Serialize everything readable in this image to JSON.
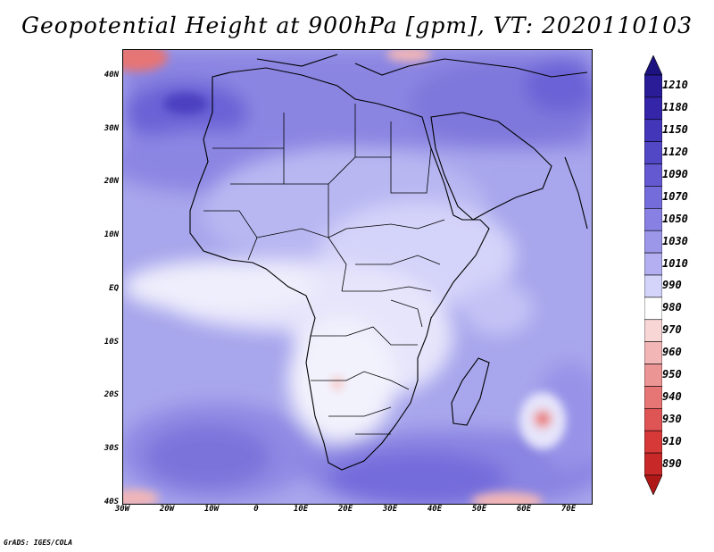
{
  "title": "Geopotential Height at 900hPa [gpm], VT: 2020110103",
  "credit": "GrADS: IGES/COLA",
  "map": {
    "variable": "Geopotential Height",
    "level": "900hPa",
    "units": "gpm",
    "valid_time": "2020110103",
    "lon_range": [
      -30,
      75
    ],
    "lat_range": [
      -40,
      45
    ]
  },
  "axes": {
    "y_labels": [
      {
        "lat": 40,
        "label": "40N"
      },
      {
        "lat": 30,
        "label": "30N"
      },
      {
        "lat": 20,
        "label": "20N"
      },
      {
        "lat": 10,
        "label": "10N"
      },
      {
        "lat": 0,
        "label": "EQ"
      },
      {
        "lat": -10,
        "label": "10S"
      },
      {
        "lat": -20,
        "label": "20S"
      },
      {
        "lat": -30,
        "label": "30S"
      },
      {
        "lat": -40,
        "label": "40S"
      }
    ],
    "x_labels": [
      {
        "lon": -30,
        "label": "30W"
      },
      {
        "lon": -20,
        "label": "20W"
      },
      {
        "lon": -10,
        "label": "10W"
      },
      {
        "lon": 0,
        "label": "0"
      },
      {
        "lon": 10,
        "label": "10E"
      },
      {
        "lon": 20,
        "label": "20E"
      },
      {
        "lon": 30,
        "label": "30E"
      },
      {
        "lon": 40,
        "label": "40E"
      },
      {
        "lon": 50,
        "label": "50E"
      },
      {
        "lon": 60,
        "label": "60E"
      },
      {
        "lon": 70,
        "label": "70E"
      }
    ]
  },
  "colorbar": {
    "levels": [
      {
        "label": "1210",
        "color": "#2a1b96"
      },
      {
        "label": "1180",
        "color": "#3525a8"
      },
      {
        "label": "1150",
        "color": "#4336b8"
      },
      {
        "label": "1120",
        "color": "#5247c5"
      },
      {
        "label": "1090",
        "color": "#6459d1"
      },
      {
        "label": "1070",
        "color": "#756cdb"
      },
      {
        "label": "1050",
        "color": "#8880e3"
      },
      {
        "label": "1030",
        "color": "#9d97ea"
      },
      {
        "label": "1010",
        "color": "#b3aff0"
      },
      {
        "label": "990",
        "color": "#d4d3f9"
      },
      {
        "label": "980",
        "color": "#ffffff"
      },
      {
        "label": "970",
        "color": "#f8d6d6"
      },
      {
        "label": "960",
        "color": "#f2b6b6"
      },
      {
        "label": "950",
        "color": "#ec9595"
      },
      {
        "label": "940",
        "color": "#e67575"
      },
      {
        "label": "930",
        "color": "#df5555"
      },
      {
        "label": "910",
        "color": "#d73838"
      },
      {
        "label": "890",
        "color": "#c92828"
      }
    ],
    "top_arrow_color": "#1c1280",
    "bottom_arrow_color": "#b01818"
  }
}
